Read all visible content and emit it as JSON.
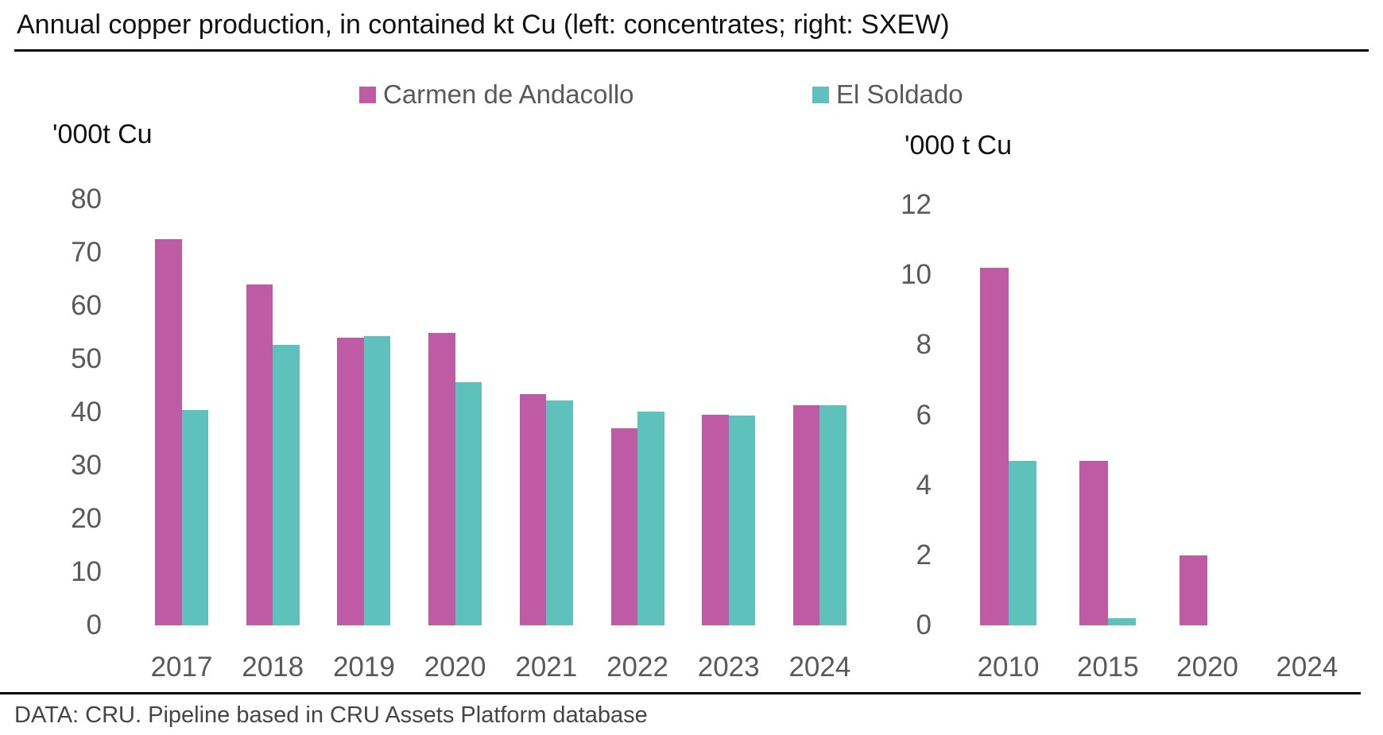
{
  "title": "Annual copper production, in contained kt Cu (left: concentrates; right: SXEW)",
  "footer": "DATA: CRU. Pipeline based in CRU Assets Platform database",
  "colors": {
    "carmen_magenta": "#bf5ba5",
    "soldado_teal": "#5ec1bc",
    "tick_gray": "#595959",
    "rule_black": "#000000"
  },
  "chart_data": [
    {
      "id": "concentrates",
      "type": "bar",
      "title": "left: concentrates",
      "axis_label": "'000t Cu",
      "categories": [
        "2017",
        "2018",
        "2019",
        "2020",
        "2021",
        "2022",
        "2023",
        "2024"
      ],
      "series": [
        {
          "name": "Carmen de Andacollo",
          "color": "#bf5ba5",
          "values": [
            72.5,
            64,
            54,
            55,
            43.5,
            37,
            39.5,
            41.4
          ]
        },
        {
          "name": "El Soldado",
          "color": "#5ec1bc",
          "values": [
            40.4,
            52.7,
            54.3,
            45.7,
            42.3,
            40.2,
            39.4,
            41.3
          ]
        }
      ],
      "xlabel": "",
      "ylabel": "'000t Cu",
      "ylim": [
        0,
        80
      ],
      "ytick_step": 10,
      "grid": false,
      "legend_position": "top"
    },
    {
      "id": "sxew",
      "type": "bar",
      "title": "right: SXEW",
      "axis_label": "'000 t Cu",
      "categories": [
        "2010",
        "2015",
        "2020",
        "2024"
      ],
      "series": [
        {
          "name": "Carmen de Andacollo",
          "color": "#bf5ba5",
          "values": [
            10.2,
            4.7,
            2.0,
            0
          ]
        },
        {
          "name": "El Soldado",
          "color": "#5ec1bc",
          "values": [
            4.7,
            0.2,
            0,
            0
          ]
        }
      ],
      "xlabel": "",
      "ylabel": "'000 t Cu",
      "ylim": [
        0,
        12
      ],
      "ytick_step": 2,
      "grid": false,
      "legend_position": "top"
    }
  ]
}
